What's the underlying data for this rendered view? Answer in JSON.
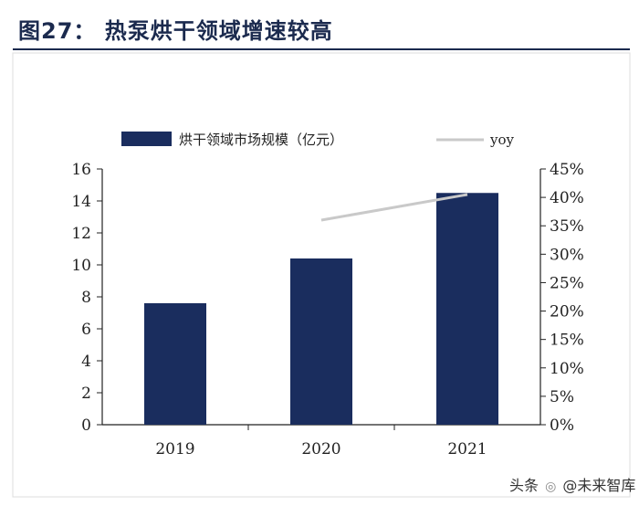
{
  "figure": {
    "title": "图27：  热泵烘干领域增速较高",
    "watermark": "头条 @未来智库",
    "watermark_prefix": "头条",
    "watermark_account": "@未来智库"
  },
  "colors": {
    "bar": "#1a2d5e",
    "line": "#c9c9c9",
    "axis": "#222222",
    "title": "#1b2a4e"
  },
  "chart_data": {
    "type": "bar",
    "categories": [
      "2019",
      "2020",
      "2021"
    ],
    "series": [
      {
        "name": "烘干领域市场规模（亿元）",
        "type": "bar",
        "axis": "left",
        "values": [
          7.6,
          10.4,
          14.5
        ]
      },
      {
        "name": "yoy",
        "type": "line",
        "axis": "right",
        "values": [
          null,
          0.36,
          0.405
        ]
      }
    ],
    "y_left": {
      "min": 0,
      "max": 16,
      "ticks": [
        "0",
        "2",
        "4",
        "6",
        "8",
        "10",
        "12",
        "14",
        "16"
      ]
    },
    "y_right": {
      "min": 0,
      "max": 0.45,
      "ticks": [
        "0%",
        "5%",
        "10%",
        "15%",
        "20%",
        "25%",
        "30%",
        "35%",
        "40%",
        "45%"
      ]
    },
    "legend": {
      "position": "top",
      "bar_label": "烘干领域市场规模（亿元）",
      "line_label": "yoy"
    },
    "title": "热泵烘干领域增速较高",
    "grid": false
  }
}
